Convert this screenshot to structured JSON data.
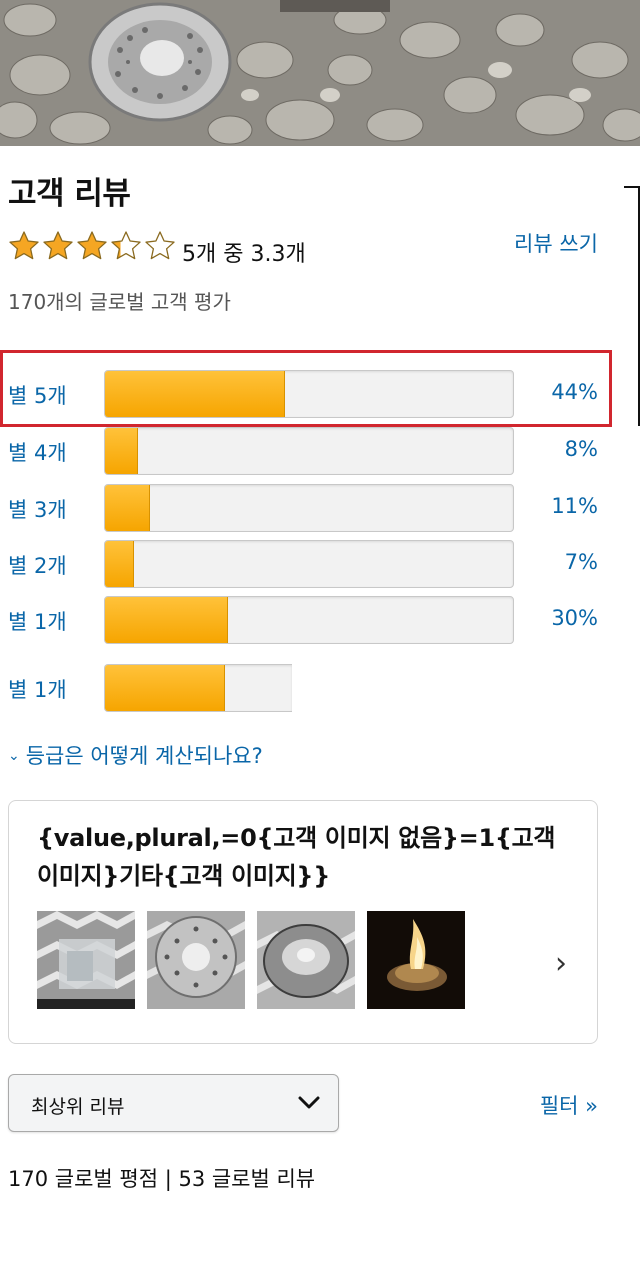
{
  "header": {
    "title": "고객 리뷰"
  },
  "rating": {
    "average_text": "5개 중 3.3개",
    "average_value": 3.3,
    "write_review_label": "리뷰 쓰기",
    "global_ratings_text": "170개의 글로벌 고객 평가",
    "star_color": "#f5a623"
  },
  "histogram": [
    {
      "label": "별 5개",
      "percent_text": "44%",
      "percent": 44
    },
    {
      "label": "별 4개",
      "percent_text": "8%",
      "percent": 8
    },
    {
      "label": "별 3개",
      "percent_text": "11%",
      "percent": 11
    },
    {
      "label": "별 2개",
      "percent_text": "7%",
      "percent": 7
    },
    {
      "label": "별 1개",
      "percent_text": "30%",
      "percent": 30
    }
  ],
  "histogram_extra": {
    "label": "별 1개",
    "percent": 30
  },
  "calc_link": "등급은 어떻게 계산되나요?",
  "images_card": {
    "title": "{value,plural,=0{고객 이미지 없음}=1{고객 이미지}기타{고객 이미지}}",
    "thumbnails": [
      "steamer-basket-photo",
      "steamer-top-photo",
      "steamer-side-photo",
      "campfire-photo"
    ],
    "next_icon": "chevron-right-icon"
  },
  "sort": {
    "selected": "최상위 리뷰"
  },
  "filter_label": "필터 »",
  "summary": "170 글로벌 평점 | 53 글로벌 리뷰",
  "colors": {
    "link": "#0a66a8",
    "bar_fill": "#f6a500",
    "highlight": "#d1262e"
  }
}
